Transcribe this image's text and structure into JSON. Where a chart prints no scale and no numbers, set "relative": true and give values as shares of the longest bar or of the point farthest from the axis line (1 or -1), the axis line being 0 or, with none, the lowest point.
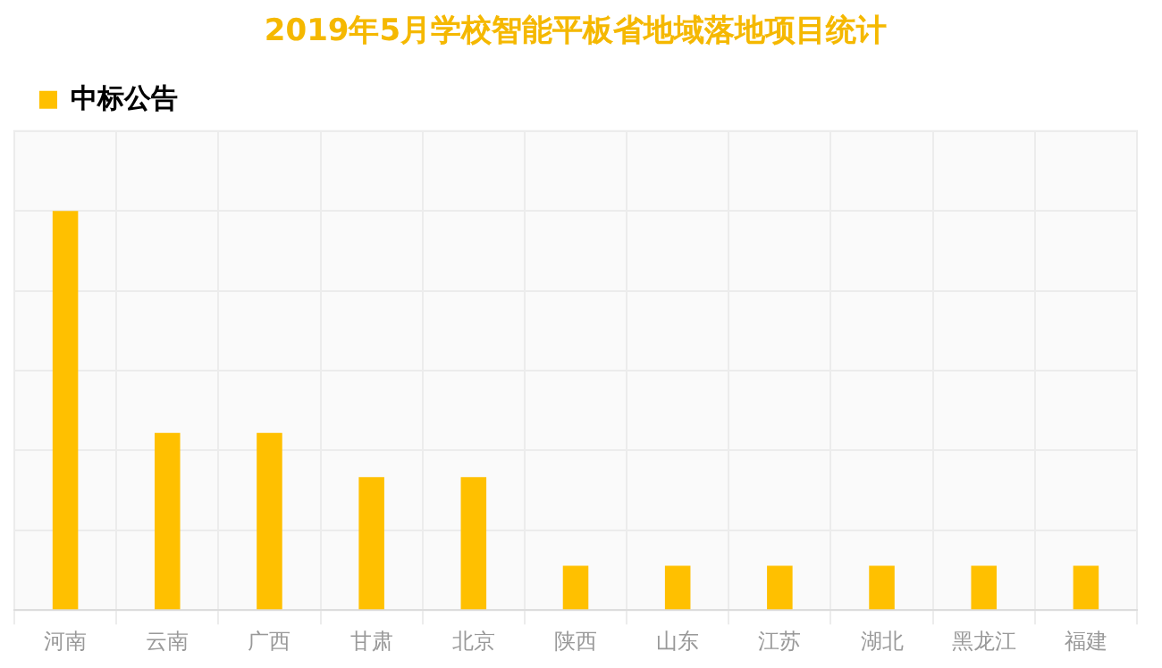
{
  "chart_data": {
    "type": "bar",
    "title": "2019年5月学校智能平板省地域落地项目统计",
    "categories": [
      "河南",
      "云南",
      "广西",
      "甘肃",
      "北京",
      "陕西",
      "山东",
      "江苏",
      "湖北",
      "黑龙江",
      "福建"
    ],
    "series": [
      {
        "name": "中标公告",
        "color": "#ffc000",
        "values": [
          1,
          0.444,
          0.444,
          0.333,
          0.333,
          0.111,
          0.111,
          0.111,
          0.111,
          0.111,
          0.111
        ]
      }
    ],
    "relative": true,
    "grid": true,
    "legend": "top left"
  }
}
